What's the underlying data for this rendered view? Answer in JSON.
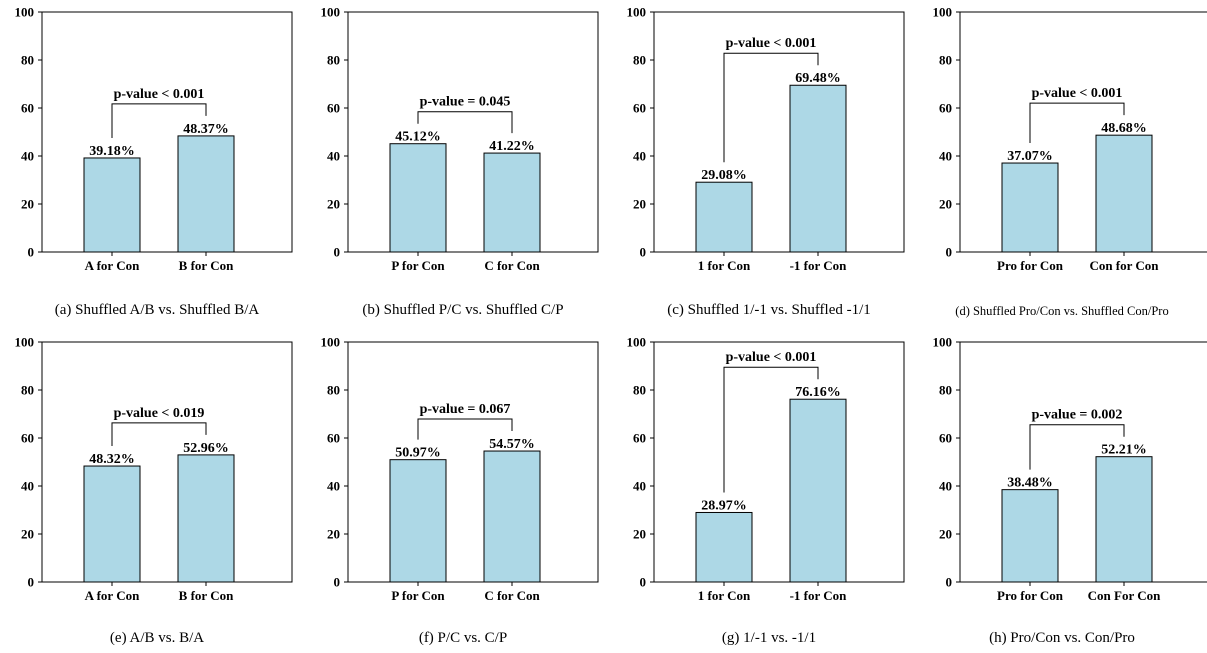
{
  "style": {
    "bar_fill": "#add8e6",
    "bar_stroke": "#000000"
  },
  "chart_data": [
    {
      "type": "bar",
      "categories": [
        "A for Con",
        "B for Con"
      ],
      "values": [
        39.18,
        48.37
      ],
      "value_labels": [
        "39.18%",
        "48.37%"
      ],
      "annotation": "p-value < 0.001",
      "ylim": [
        0,
        100
      ],
      "yticks": [
        0,
        20,
        40,
        60,
        80,
        100
      ],
      "caption": "(a) Shuffled A/B vs. Shuffled B/A",
      "grid": false
    },
    {
      "type": "bar",
      "categories": [
        "P for Con",
        "C for Con"
      ],
      "values": [
        45.12,
        41.22
      ],
      "value_labels": [
        "45.12%",
        "41.22%"
      ],
      "annotation": "p-value = 0.045",
      "ylim": [
        0,
        100
      ],
      "yticks": [
        0,
        20,
        40,
        60,
        80,
        100
      ],
      "caption": "(b) Shuffled P/C vs. Shuffled C/P",
      "grid": false
    },
    {
      "type": "bar",
      "categories": [
        "1 for Con",
        "-1 for Con"
      ],
      "values": [
        29.08,
        69.48
      ],
      "value_labels": [
        "29.08%",
        "69.48%"
      ],
      "annotation": "p-value < 0.001",
      "ylim": [
        0,
        100
      ],
      "yticks": [
        0,
        20,
        40,
        60,
        80,
        100
      ],
      "caption": "(c) Shuffled 1/-1 vs. Shuffled -1/1",
      "grid": false
    },
    {
      "type": "bar",
      "categories": [
        "Pro for Con",
        "Con for Con"
      ],
      "values": [
        37.07,
        48.68
      ],
      "value_labels": [
        "37.07%",
        "48.68%"
      ],
      "annotation": "p-value < 0.001",
      "ylim": [
        0,
        100
      ],
      "yticks": [
        0,
        20,
        40,
        60,
        80,
        100
      ],
      "caption": "(d) Shuffled Pro/Con vs. Shuffled Con/Pro",
      "grid": false
    },
    {
      "type": "bar",
      "categories": [
        "A for Con",
        "B for Con"
      ],
      "values": [
        48.32,
        52.96
      ],
      "value_labels": [
        "48.32%",
        "52.96%"
      ],
      "annotation": "p-value < 0.019",
      "ylim": [
        0,
        100
      ],
      "yticks": [
        0,
        20,
        40,
        60,
        80,
        100
      ],
      "caption": "(e) A/B vs. B/A",
      "grid": false
    },
    {
      "type": "bar",
      "categories": [
        "P for Con",
        "C for Con"
      ],
      "values": [
        50.97,
        54.57
      ],
      "value_labels": [
        "50.97%",
        "54.57%"
      ],
      "annotation": "p-value = 0.067",
      "ylim": [
        0,
        100
      ],
      "yticks": [
        0,
        20,
        40,
        60,
        80,
        100
      ],
      "caption": "(f) P/C vs. C/P",
      "grid": false
    },
    {
      "type": "bar",
      "categories": [
        "1 for Con",
        "-1 for Con"
      ],
      "values": [
        28.97,
        76.16
      ],
      "value_labels": [
        "28.97%",
        "76.16%"
      ],
      "annotation": "p-value < 0.001",
      "ylim": [
        0,
        100
      ],
      "yticks": [
        0,
        20,
        40,
        60,
        80,
        100
      ],
      "caption": "(g) 1/-1 vs. -1/1",
      "grid": false
    },
    {
      "type": "bar",
      "categories": [
        "Pro for Con",
        "Con For Con"
      ],
      "values": [
        38.48,
        52.21
      ],
      "value_labels": [
        "38.48%",
        "52.21%"
      ],
      "annotation": "p-value = 0.002",
      "ylim": [
        0,
        100
      ],
      "yticks": [
        0,
        20,
        40,
        60,
        80,
        100
      ],
      "caption": "(h) Pro/Con vs. Con/Pro",
      "grid": false
    }
  ]
}
